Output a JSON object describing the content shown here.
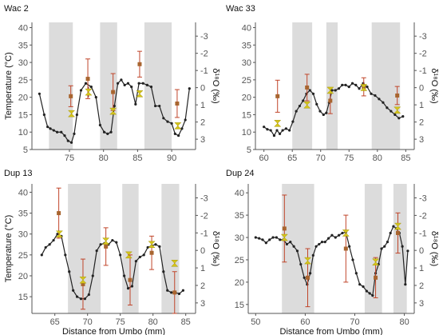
{
  "figure": {
    "xlabel": "Distance from Umbo (mm)",
    "ylabel_left": "Temperature (°C)",
    "ylabel_right": "δ¹⁸O (‰)"
  },
  "colors": {
    "temperature_line": "#222222",
    "oxygen_point": "#d4c41a",
    "oxygen_whisker": "#8a2d2d",
    "clumped_point": "#a8652f",
    "clumped_whisker": "#c0452a",
    "band": "#dcdcdc",
    "axis": "#555555"
  },
  "chart_data": [
    {
      "type": "line",
      "title": "Wac 2",
      "xlabel": "",
      "ylabel": "Temperature (°C)",
      "y2label": "δ¹⁸O (‰)",
      "xlim": [
        69.5,
        93.5
      ],
      "ylim": [
        5,
        41.5
      ],
      "y2lim": [
        3.6,
        -3.8
      ],
      "xticks": [
        75,
        80,
        85,
        90
      ],
      "yticks": [
        5,
        10,
        15,
        20,
        25,
        30,
        35,
        40
      ],
      "y2ticks": [
        -3,
        -2,
        -1,
        0,
        1,
        2,
        3
      ],
      "shaded_bands": [
        [
          72,
          75.5
        ],
        [
          79.5,
          82
        ],
        [
          86,
          90
        ]
      ],
      "temperature": {
        "x": [
          70.6,
          71.3,
          71.8,
          72.2,
          72.7,
          73.2,
          73.8,
          74.3,
          74.8,
          75.3,
          75.7,
          76.1,
          76.7,
          77.4,
          78.2,
          78.9,
          79.5,
          80.1,
          80.6,
          81.1,
          81.6,
          82.1,
          82.6,
          83.1,
          83.6,
          84.1,
          84.7,
          85.2,
          85.8,
          86.4,
          87,
          87.6,
          88.2,
          88.8,
          89.4,
          90,
          90.5,
          91,
          91.5,
          92,
          92.6
        ],
        "y": [
          21,
          15,
          11.5,
          11,
          10.5,
          10,
          10,
          9,
          7.5,
          7,
          9.5,
          15,
          22,
          24,
          23,
          20,
          12,
          10,
          9.5,
          10,
          17.5,
          24,
          25,
          23.5,
          24,
          23,
          18,
          24,
          24,
          23.5,
          23,
          17.5,
          17.5,
          14,
          13,
          12.5,
          9.5,
          9,
          11,
          13.5,
          22.5
        ]
      },
      "oxygen_points": {
        "x": [
          75.3,
          77.8,
          81.4,
          85.3,
          90.9
        ],
        "y": [
          15.3,
          21.5,
          16,
          21,
          11.8
        ],
        "err": [
          0.4,
          1.5,
          0.4,
          0.4,
          0.2
        ]
      },
      "clumped_points": {
        "x": [
          75.2,
          77.7,
          81.4,
          85.3,
          90.8
        ],
        "y": [
          20.3,
          25.3,
          21.5,
          29.5,
          18.2
        ],
        "err": [
          3,
          5.7,
          5.3,
          3.7,
          4
        ]
      }
    },
    {
      "type": "line",
      "title": "Wac 33",
      "xlabel": "",
      "ylabel": "Temperature (°C)",
      "y2label": "δ¹⁸O (‰)",
      "xlim": [
        58.5,
        86.5
      ],
      "ylim": [
        5,
        41.5
      ],
      "y2lim": [
        3.6,
        -3.8
      ],
      "xticks": [
        60,
        65,
        70,
        75,
        80,
        85
      ],
      "yticks": [
        5,
        10,
        15,
        20,
        25,
        30,
        35,
        40
      ],
      "y2ticks": [
        -3,
        -2,
        -1,
        0,
        1,
        2,
        3
      ],
      "shaded_bands": [
        [
          65,
          68.5
        ],
        [
          71,
          73
        ],
        [
          79,
          84
        ]
      ],
      "temperature": {
        "x": [
          60,
          60.6,
          61.2,
          61.8,
          62.3,
          62.8,
          63.3,
          63.9,
          64.5,
          65.1,
          65.7,
          66.3,
          66.9,
          67.5,
          68.1,
          68.7,
          69.3,
          69.9,
          70.5,
          71,
          71.5,
          72,
          72.6,
          73.2,
          73.8,
          74.4,
          75,
          75.6,
          76.2,
          76.8,
          77.5,
          78.2,
          78.9,
          79.6,
          80.3,
          81,
          81.7,
          82.4,
          83.1,
          83.8,
          84.5
        ],
        "y": [
          11.5,
          10.8,
          10.5,
          9,
          10.5,
          9.5,
          10.5,
          11,
          10.5,
          13,
          16,
          17.5,
          19,
          21,
          22,
          21,
          18,
          16,
          15,
          15.5,
          18.5,
          22,
          22,
          22.5,
          23.5,
          23.5,
          23,
          24,
          23.5,
          22.5,
          24,
          23,
          21,
          20.5,
          19.5,
          18.5,
          17,
          16,
          15,
          14,
          14.5
        ]
      },
      "oxygen_points": {
        "x": [
          62.4,
          67.6,
          71.7,
          77.6,
          83.5
        ],
        "y": [
          12.5,
          17.8,
          22,
          22.8,
          16.3
        ],
        "err": [
          0.3,
          0.4,
          0.4,
          0.3,
          0.3
        ]
      },
      "clumped_points": {
        "x": [
          62.4,
          67.6,
          71.7,
          77.6,
          83.5
        ],
        "y": [
          20.3,
          22.8,
          19,
          23,
          20.5
        ],
        "err": [
          4.6,
          3.8,
          3.7,
          2.6,
          2.6
        ]
      }
    },
    {
      "type": "line",
      "title": "Dup 13",
      "xlabel": "Distance from Umbo (mm)",
      "ylabel": "Temperature (°C)",
      "y2label": "δ¹⁸O (‰)",
      "xlim": [
        61.5,
        86.5
      ],
      "ylim": [
        11,
        42
      ],
      "y2lim": [
        3.6,
        -3.8
      ],
      "xticks": [
        65,
        70,
        75,
        80,
        85
      ],
      "yticks": [
        15,
        20,
        25,
        30,
        35,
        40
      ],
      "y2ticks": [
        -3,
        -2,
        -1,
        0,
        1,
        2,
        3
      ],
      "shaded_bands": [
        [
          67,
          72
        ],
        [
          75.3,
          77.8
        ],
        [
          81.3,
          84
        ]
      ],
      "temperature": {
        "x": [
          63,
          63.6,
          64.2,
          64.8,
          65.4,
          66,
          66.6,
          67.2,
          67.8,
          68.4,
          69,
          69.6,
          70.2,
          70.8,
          71.4,
          72,
          72.6,
          73.2,
          73.8,
          74.4,
          75,
          75.6,
          76.2,
          76.8,
          77.4,
          78,
          78.6,
          79.2,
          79.8,
          80.4,
          81,
          81.6,
          82.2,
          82.8,
          83.4,
          84,
          84.6
        ],
        "y": [
          25,
          26.8,
          27.5,
          28.5,
          30,
          29.5,
          25,
          21,
          16.5,
          15,
          14.5,
          14.5,
          15.5,
          20,
          26,
          27.5,
          27.8,
          27.5,
          28.5,
          28,
          25,
          20,
          17,
          17.5,
          23.5,
          24.5,
          25,
          26.8,
          27.2,
          27.5,
          27,
          21,
          16.5,
          16,
          16,
          15.7,
          16.5
        ]
      },
      "oxygen_points": {
        "x": [
          65.7,
          69.3,
          72.8,
          76.3,
          79.8,
          83.3
        ],
        "y": [
          30,
          19,
          28.3,
          25,
          27.5,
          23
        ],
        "err": [
          0.5,
          0.5,
          0.5,
          0.5,
          0.5,
          0.5
        ]
      },
      "clumped_points": {
        "x": [
          65.6,
          69.3,
          72.8,
          76.5,
          79.8,
          83.3
        ],
        "y": [
          35,
          18,
          27,
          19,
          25.5,
          16
        ],
        "err": [
          6,
          6,
          4.5,
          6,
          4,
          5
        ]
      }
    },
    {
      "type": "line",
      "title": "Dup 24",
      "xlabel": "Distance from Umbo (mm)",
      "ylabel": "Temperature (°C)",
      "y2label": "δ¹⁸O (‰)",
      "xlim": [
        48.5,
        82
      ],
      "ylim": [
        13,
        42
      ],
      "y2lim": [
        3.6,
        -3.8
      ],
      "xticks": [
        50,
        60,
        70,
        80
      ],
      "yticks": [
        15,
        20,
        25,
        30,
        35,
        40
      ],
      "y2ticks": [
        -3,
        -2,
        -1,
        0,
        1,
        2,
        3
      ],
      "shaded_bands": [
        [
          55.3,
          61.8
        ],
        [
          72,
          75.5
        ],
        [
          77.8,
          80.5
        ]
      ],
      "temperature": {
        "x": [
          50,
          50.7,
          51.4,
          52.1,
          52.8,
          53.5,
          54.2,
          54.9,
          55.6,
          56.3,
          57,
          57.7,
          58.4,
          59.1,
          59.8,
          60.4,
          61,
          61.6,
          62.2,
          62.8,
          63.4,
          64,
          64.7,
          65.4,
          66.1,
          66.8,
          67.5,
          68.2,
          68.9,
          69.6,
          70.3,
          71,
          71.7,
          72.4,
          73,
          73.6,
          74.2,
          74.8,
          75.4,
          76,
          76.6,
          77.2,
          77.8,
          78.4,
          79,
          79.6,
          80.2,
          80.7
        ],
        "y": [
          30,
          29.8,
          29.5,
          28.8,
          29.5,
          30,
          30,
          29.5,
          29.5,
          28.5,
          29,
          28,
          27,
          24,
          21,
          19.5,
          22,
          26,
          28,
          28.5,
          29,
          29,
          29.8,
          30.5,
          30,
          30.5,
          31,
          31.2,
          28,
          25,
          22,
          19.5,
          19,
          18,
          17.5,
          17,
          22,
          24,
          27.5,
          28,
          29,
          31,
          32.5,
          32,
          31,
          28,
          19.5,
          27
        ]
      },
      "oxygen_points": {
        "x": [
          55.8,
          60.5,
          68.2,
          74.2,
          78.7
        ],
        "y": [
          30,
          24.8,
          31,
          24.5,
          32.5
        ],
        "err": [
          0.4,
          0.4,
          0.4,
          0.4,
          0.4
        ]
      },
      "clumped_points": {
        "x": [
          55.8,
          60.5,
          68.2,
          74.2,
          78.7
        ],
        "y": [
          32,
          21,
          27.5,
          21,
          31
        ],
        "err": [
          7.5,
          6.5,
          7.5,
          4.5,
          4.5
        ]
      }
    }
  ]
}
